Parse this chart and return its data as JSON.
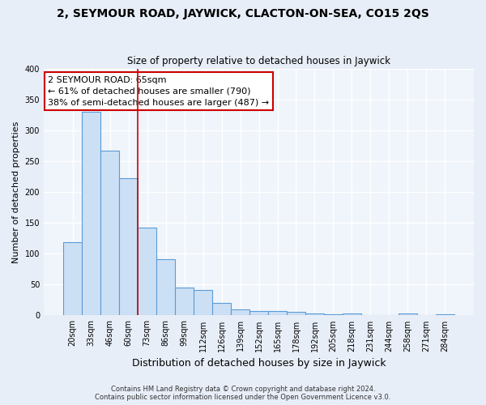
{
  "title": "2, SEYMOUR ROAD, JAYWICK, CLACTON-ON-SEA, CO15 2QS",
  "subtitle": "Size of property relative to detached houses in Jaywick",
  "xlabel": "Distribution of detached houses by size in Jaywick",
  "ylabel": "Number of detached properties",
  "bar_labels": [
    "20sqm",
    "33sqm",
    "46sqm",
    "60sqm",
    "73sqm",
    "86sqm",
    "99sqm",
    "112sqm",
    "126sqm",
    "139sqm",
    "152sqm",
    "165sqm",
    "178sqm",
    "192sqm",
    "205sqm",
    "218sqm",
    "231sqm",
    "244sqm",
    "258sqm",
    "271sqm",
    "284sqm"
  ],
  "bar_values": [
    118,
    330,
    267,
    222,
    142,
    91,
    45,
    41,
    20,
    10,
    7,
    7,
    6,
    3,
    2,
    3,
    1,
    0,
    3,
    1,
    2
  ],
  "bar_color": "#cce0f5",
  "bar_edge_color": "#5b9bd5",
  "vline_x": 3.5,
  "vline_color": "#cc0000",
  "annotation_title": "2 SEYMOUR ROAD: 65sqm",
  "annotation_line1": "← 61% of detached houses are smaller (790)",
  "annotation_line2": "38% of semi-detached houses are larger (487) →",
  "ylim": [
    0,
    400
  ],
  "yticks": [
    0,
    50,
    100,
    150,
    200,
    250,
    300,
    350,
    400
  ],
  "footer_line1": "Contains HM Land Registry data © Crown copyright and database right 2024.",
  "footer_line2": "Contains public sector information licensed under the Open Government Licence v3.0.",
  "bg_color": "#e8eef8",
  "plot_bg_color": "#f0f5fc",
  "title_fontsize": 10,
  "subtitle_fontsize": 8.5,
  "xlabel_fontsize": 9,
  "ylabel_fontsize": 8,
  "tick_fontsize": 7,
  "annotation_fontsize": 8,
  "footer_fontsize": 6
}
